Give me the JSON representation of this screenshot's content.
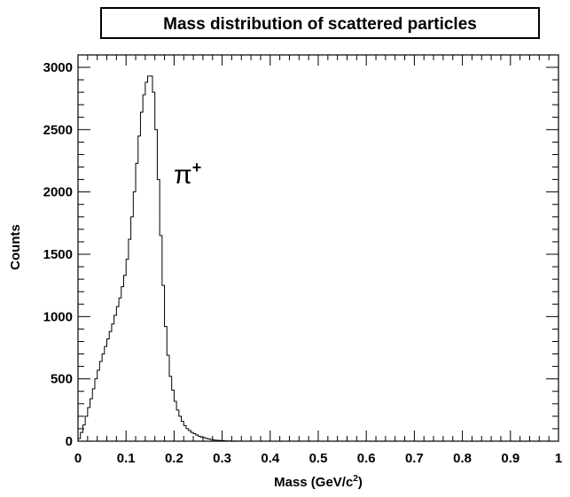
{
  "chart_data": {
    "type": "histogram",
    "title": "Mass distribution of scattered particles",
    "xlabel": "Mass (GeV/c",
    "xlabel_sup": "2",
    "xlabel_tail": ")",
    "ylabel": "Counts",
    "annotation": {
      "text": "π",
      "sup": "+"
    },
    "xlim": [
      0,
      1
    ],
    "ylim": [
      0,
      3000
    ],
    "x_ticks": [
      0,
      0.1,
      0.2,
      0.3,
      0.4,
      0.5,
      0.6,
      0.7,
      0.8,
      0.9,
      1
    ],
    "x_tick_labels": [
      "0",
      "0.1",
      "0.2",
      "0.3",
      "0.4",
      "0.5",
      "0.6",
      "0.7",
      "0.8",
      "0.9",
      "1"
    ],
    "y_ticks": [
      0,
      500,
      1000,
      1500,
      2000,
      2500,
      3000
    ],
    "y_tick_labels": [
      "0",
      "500",
      "1000",
      "1500",
      "2000",
      "2500",
      "3000"
    ],
    "grid": false,
    "series": [
      {
        "x": [
          0.0,
          0.005,
          0.01,
          0.015,
          0.02,
          0.025,
          0.03,
          0.035,
          0.04,
          0.045,
          0.05,
          0.055,
          0.06,
          0.065,
          0.07,
          0.075,
          0.08,
          0.085,
          0.09,
          0.095,
          0.1,
          0.105,
          0.11,
          0.115,
          0.12,
          0.125,
          0.13,
          0.135,
          0.14,
          0.145,
          0.15,
          0.155,
          0.16,
          0.165,
          0.17,
          0.175,
          0.18,
          0.185,
          0.19,
          0.195,
          0.2,
          0.205,
          0.21,
          0.215,
          0.22,
          0.225,
          0.23,
          0.235,
          0.24,
          0.245,
          0.25,
          0.255,
          0.26,
          0.265,
          0.27,
          0.275,
          0.28,
          0.285,
          0.29,
          0.295,
          0.3,
          0.305,
          0.31,
          0.315,
          0.32,
          0.325,
          0.33,
          0.335,
          0.34,
          0.345,
          0.35
        ],
        "y": [
          20,
          70,
          130,
          200,
          270,
          340,
          420,
          500,
          570,
          640,
          700,
          760,
          820,
          880,
          940,
          1010,
          1080,
          1150,
          1240,
          1330,
          1460,
          1620,
          1800,
          2000,
          2230,
          2450,
          2640,
          2780,
          2880,
          2930,
          2930,
          2800,
          2500,
          2100,
          1650,
          1250,
          920,
          690,
          520,
          410,
          320,
          250,
          200,
          160,
          125,
          100,
          85,
          70,
          60,
          50,
          40,
          33,
          28,
          22,
          18,
          14,
          10,
          8,
          6,
          5,
          4,
          3,
          2,
          2,
          1,
          1,
          1,
          0,
          0,
          0,
          0
        ]
      }
    ]
  }
}
